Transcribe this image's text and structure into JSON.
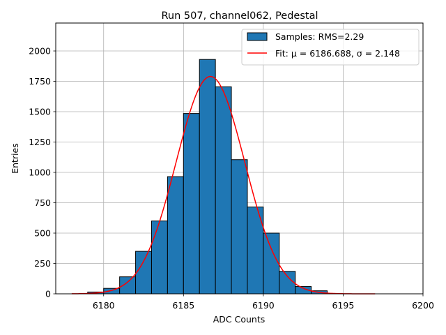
{
  "chart_data": {
    "type": "bar",
    "title": "Run 507, channel062, Pedestal",
    "xlabel": "ADC Counts",
    "ylabel": "Entries",
    "xlim": [
      6177,
      6200
    ],
    "ylim": [
      0,
      2230
    ],
    "xticks": [
      6180,
      6185,
      6190,
      6195,
      6200
    ],
    "yticks": [
      0,
      250,
      500,
      750,
      1000,
      1250,
      1500,
      1750,
      2000
    ],
    "grid": true,
    "legend_position": "top-right",
    "histogram": {
      "name": "Samples: RMS=2.29",
      "bin_width": 1,
      "bin_starts": [
        6179,
        6180,
        6181,
        6182,
        6183,
        6184,
        6185,
        6186,
        6187,
        6188,
        6189,
        6190,
        6191,
        6192,
        6193
      ],
      "values": [
        15,
        45,
        140,
        350,
        600,
        965,
        1485,
        1930,
        1705,
        1105,
        715,
        500,
        185,
        60,
        25
      ],
      "color": "#1f77b4",
      "edge_color": "#000000"
    },
    "fit": {
      "name": "Fit: μ = 6186.688, σ = 2.148",
      "mu": 6186.688,
      "sigma": 2.148,
      "amplitude": 1790,
      "x_range": [
        6178,
        6197
      ],
      "color": "#ff0000"
    }
  }
}
